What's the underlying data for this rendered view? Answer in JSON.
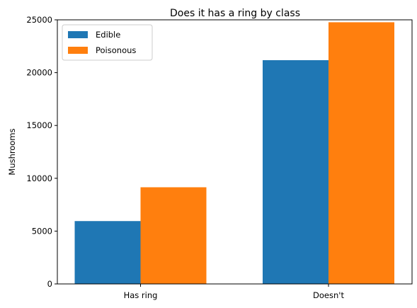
{
  "chart_data": {
    "type": "bar",
    "title": "Does it has a ring by class",
    "xlabel": "",
    "ylabel": "Mushrooms",
    "categories": [
      "Has ring",
      "Doesn't"
    ],
    "series": [
      {
        "name": "Edible",
        "values": [
          5950,
          21180
        ],
        "color": "#1f77b4"
      },
      {
        "name": "Poisonous",
        "values": [
          9150,
          24770
        ],
        "color": "#ff7f0e"
      }
    ],
    "ylim": [
      0,
      25000
    ],
    "yticks": [
      0,
      5000,
      10000,
      15000,
      20000,
      25000
    ],
    "legend_position": "top-left",
    "grid": false
  }
}
